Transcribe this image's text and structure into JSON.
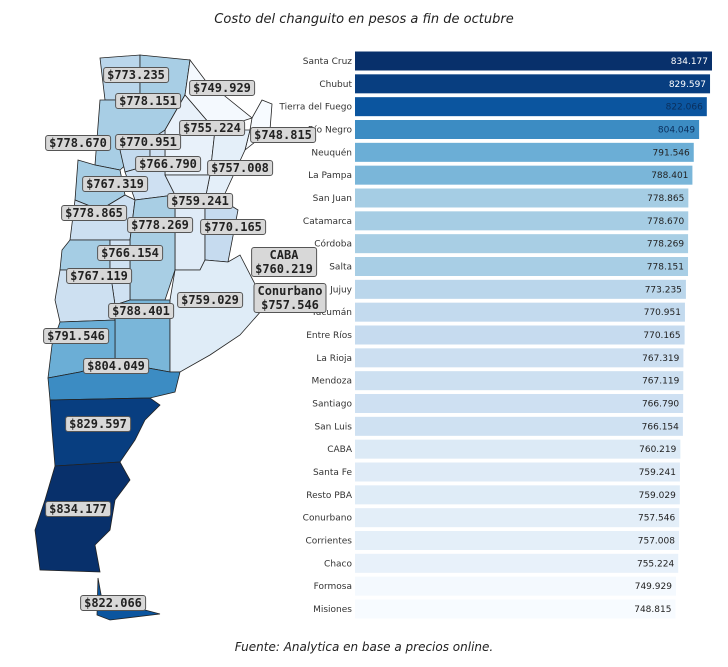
{
  "title": "Costo del changuito en pesos a fin de octubre",
  "source": "Fuente: Analytica en base a precios online.",
  "chart_data": [
    {
      "type": "bar",
      "orientation": "horizontal",
      "colormap": "Blues",
      "low_color": "#f7fbff",
      "high_color": "#08306b",
      "categories": [
        "Santa Cruz",
        "Chubut",
        "Tierra del Fuego",
        "Río Negro",
        "Neuquén",
        "La Pampa",
        "San Juan",
        "Catamarca",
        "Córdoba",
        "Salta",
        "Jujuy",
        "Tucumán",
        "Entre Ríos",
        "La Rioja",
        "Mendoza",
        "Santiago",
        "San Luis",
        "CABA",
        "Santa Fe",
        "Resto PBA",
        "Conurbano",
        "Corrientes",
        "Chaco",
        "Formosa",
        "Misiones"
      ],
      "values": [
        834.177,
        829.597,
        822.066,
        804.049,
        791.546,
        788.401,
        778.865,
        778.67,
        778.269,
        778.151,
        773.235,
        770.951,
        770.165,
        767.319,
        767.119,
        766.79,
        766.154,
        760.219,
        759.241,
        759.029,
        757.546,
        757.008,
        755.224,
        749.929,
        748.815
      ],
      "value_labels": [
        "834.177",
        "829.597",
        "822.066",
        "804.049",
        "791.546",
        "788.401",
        "778.865",
        "778.670",
        "778.269",
        "778.151",
        "773.235",
        "770.951",
        "770.165",
        "767.319",
        "767.119",
        "766.790",
        "766.154",
        "760.219",
        "759.241",
        "759.029",
        "757.546",
        "757.008",
        "755.224",
        "749.929",
        "748.815"
      ],
      "xlim": [
        0,
        834.177
      ],
      "grid": false
    },
    {
      "type": "choropleth",
      "colormap": "Blues",
      "labels": [
        {
          "province": "Jujuy",
          "text": "$773.235"
        },
        {
          "province": "Formosa",
          "text": "$749.929"
        },
        {
          "province": "Salta",
          "text": "$778.151"
        },
        {
          "province": "Chaco",
          "text": "$755.224"
        },
        {
          "province": "Misiones",
          "text": "$748.815"
        },
        {
          "province": "Catamarca",
          "text": "$778.670"
        },
        {
          "province": "Tucumán",
          "text": "$770.951"
        },
        {
          "province": "Santiago",
          "text": "$766.790"
        },
        {
          "province": "Corrientes",
          "text": "$757.008"
        },
        {
          "province": "La Rioja",
          "text": "$767.319"
        },
        {
          "province": "Santa Fe",
          "text": "$759.241"
        },
        {
          "province": "San Juan",
          "text": "$778.865"
        },
        {
          "province": "Córdoba",
          "text": "$778.269"
        },
        {
          "province": "Entre Ríos",
          "text": "$770.165"
        },
        {
          "province": "San Luis",
          "text": "$766.154"
        },
        {
          "province": "CABA",
          "text": "CABA\n$760.219"
        },
        {
          "province": "Mendoza",
          "text": "$767.119"
        },
        {
          "province": "Resto PBA",
          "text": "$759.029"
        },
        {
          "province": "Conurbano",
          "text": "Conurbano\n$757.546"
        },
        {
          "province": "La Pampa",
          "text": "$788.401"
        },
        {
          "province": "Neuquén",
          "text": "$791.546"
        },
        {
          "province": "Río Negro",
          "text": "$804.049"
        },
        {
          "province": "Chubut",
          "text": "$829.597"
        },
        {
          "province": "Santa Cruz",
          "text": "$834.177"
        },
        {
          "province": "Tierra del Fuego",
          "text": "$822.066"
        }
      ]
    }
  ]
}
